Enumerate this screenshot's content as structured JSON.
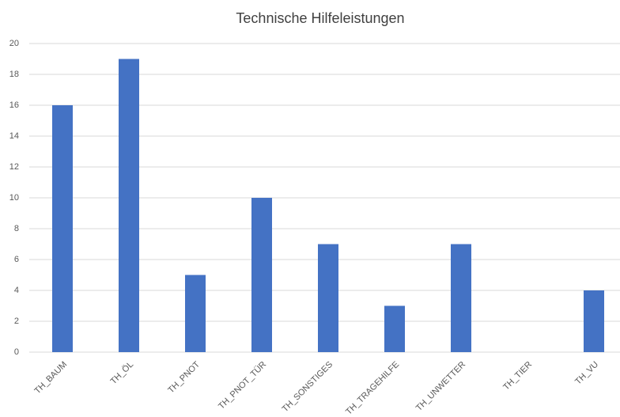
{
  "chart_data": {
    "type": "bar",
    "title": "Technische Hilfeleistungen",
    "categories": [
      "TH_BAUM",
      "TH_ÖL",
      "TH_PNOT",
      "TH_PNOT_TÜR",
      "TH_SONSTIGES",
      "TH_TRAGEHILFE",
      "TH_UNWETTER",
      "TH_TIER",
      "TH_VU"
    ],
    "values": [
      16,
      19,
      5,
      10,
      7,
      3,
      7,
      0,
      4
    ],
    "color": "#4472c4",
    "ylim": [
      0,
      20
    ],
    "yticks": [
      0,
      2,
      4,
      6,
      8,
      10,
      12,
      14,
      16,
      18,
      20
    ],
    "grid": true
  }
}
